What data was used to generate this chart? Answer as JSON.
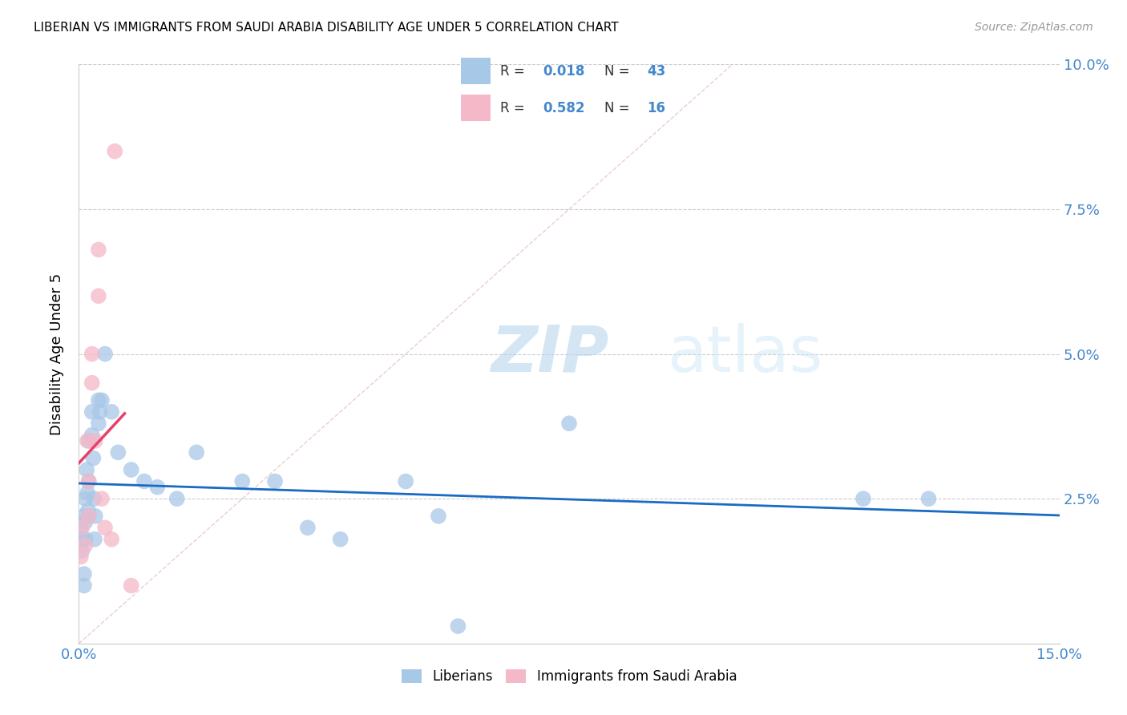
{
  "title": "LIBERIAN VS IMMIGRANTS FROM SAUDI ARABIA DISABILITY AGE UNDER 5 CORRELATION CHART",
  "source": "Source: ZipAtlas.com",
  "ylabel": "Disability Age Under 5",
  "xlim": [
    0.0,
    0.15
  ],
  "ylim": [
    0.0,
    0.1
  ],
  "xtick_positions": [
    0.0,
    0.05,
    0.1,
    0.15
  ],
  "xtick_labels": [
    "0.0%",
    "",
    "",
    "15.0%"
  ],
  "ytick_positions": [
    0.0,
    0.025,
    0.05,
    0.075,
    0.1
  ],
  "ytick_labels_right": [
    "",
    "2.5%",
    "5.0%",
    "7.5%",
    "10.0%"
  ],
  "liberian_R": "0.018",
  "liberian_N": "43",
  "saudi_R": "0.582",
  "saudi_N": "16",
  "liberian_color": "#a8c8e8",
  "liberian_line_color": "#1a6bc4",
  "saudi_color": "#f5b8c8",
  "saudi_line_color": "#e8406a",
  "diagonal_color": "#e8c0c8",
  "watermark_zip": "ZIP",
  "watermark_atlas": "atlas",
  "grid_color": "#cccccc",
  "tick_color": "#4488cc",
  "liberian_x": [
    0.0003,
    0.0005,
    0.0005,
    0.0007,
    0.0008,
    0.0008,
    0.001,
    0.001,
    0.001,
    0.0012,
    0.0013,
    0.0014,
    0.0015,
    0.0015,
    0.0015,
    0.002,
    0.002,
    0.0022,
    0.0023,
    0.0024,
    0.0025,
    0.003,
    0.003,
    0.0032,
    0.0035,
    0.004,
    0.005,
    0.006,
    0.008,
    0.01,
    0.012,
    0.015,
    0.018,
    0.025,
    0.03,
    0.035,
    0.04,
    0.05,
    0.055,
    0.058,
    0.075,
    0.12,
    0.13
  ],
  "liberian_y": [
    0.02,
    0.018,
    0.016,
    0.022,
    0.012,
    0.01,
    0.025,
    0.021,
    0.018,
    0.03,
    0.026,
    0.023,
    0.035,
    0.028,
    0.022,
    0.04,
    0.036,
    0.032,
    0.025,
    0.018,
    0.022,
    0.042,
    0.038,
    0.04,
    0.042,
    0.05,
    0.04,
    0.033,
    0.03,
    0.028,
    0.027,
    0.025,
    0.033,
    0.028,
    0.028,
    0.02,
    0.018,
    0.028,
    0.022,
    0.003,
    0.038,
    0.025,
    0.025
  ],
  "saudi_x": [
    0.0003,
    0.0005,
    0.001,
    0.0013,
    0.0015,
    0.0015,
    0.002,
    0.002,
    0.0025,
    0.003,
    0.003,
    0.0035,
    0.004,
    0.005,
    0.0055,
    0.008
  ],
  "saudi_y": [
    0.015,
    0.02,
    0.017,
    0.035,
    0.028,
    0.022,
    0.05,
    0.045,
    0.035,
    0.068,
    0.06,
    0.025,
    0.02,
    0.018,
    0.085,
    0.01
  ]
}
